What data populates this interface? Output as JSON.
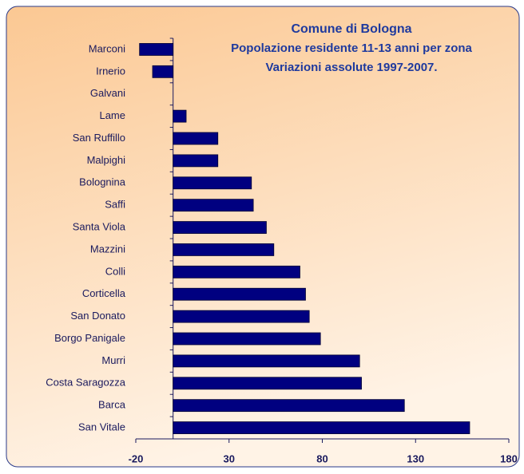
{
  "chart_data": {
    "type": "bar",
    "orientation": "horizontal",
    "title": "Comune di Bologna",
    "subtitle": [
      "Popolazione residente 11-13 anni per zona",
      "Variazioni assolute 1997-2007."
    ],
    "categories": [
      "Marconi",
      "Irnerio",
      "Galvani",
      "Lame",
      "San Ruffillo",
      "Malpighi",
      "Bolognina",
      "Saffi",
      "Santa Viola",
      "Mazzini",
      "Colli",
      "Corticella",
      "San Donato",
      "Borgo Panigale",
      "Murri",
      "Costa Saragozza",
      "Barca",
      "San Vitale"
    ],
    "values": [
      -18,
      -11,
      0,
      7,
      24,
      24,
      42,
      43,
      50,
      54,
      68,
      71,
      73,
      79,
      100,
      101,
      124,
      159
    ],
    "color": "#000080",
    "xlim": [
      -20,
      180
    ],
    "xticks": [
      -20,
      30,
      80,
      130,
      180
    ],
    "grid": false
  }
}
